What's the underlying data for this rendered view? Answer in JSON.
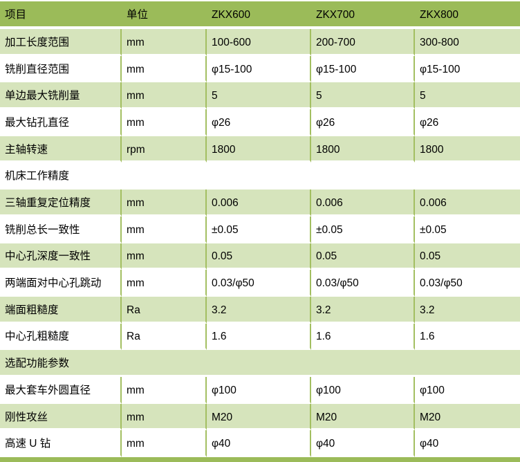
{
  "colors": {
    "header_green": "#9bbb59",
    "row_light_green": "#d6e4bc",
    "row_white": "#ffffff",
    "grid_line_green": "#a3bf61",
    "text": "#000000"
  },
  "table": {
    "columns": [
      "项目",
      "单位",
      "ZKX600",
      "ZKX700",
      "ZKX800"
    ],
    "rows": [
      {
        "type": "data",
        "shade": "green",
        "cells": [
          "加工长度范围",
          "mm",
          "100-600",
          "200-700",
          "300-800"
        ]
      },
      {
        "type": "data",
        "shade": "white",
        "cells": [
          "铣削直径范围",
          "mm",
          "φ15-100",
          "φ15-100",
          "φ15-100"
        ]
      },
      {
        "type": "data",
        "shade": "green",
        "cells": [
          "单边最大铣削量",
          "mm",
          "5",
          "5",
          "5"
        ]
      },
      {
        "type": "data",
        "shade": "white",
        "cells": [
          "最大钻孔直径",
          "mm",
          "φ26",
          "φ26",
          "φ26"
        ]
      },
      {
        "type": "data",
        "shade": "green",
        "cells": [
          "主轴转速",
          "rpm",
          "1800",
          "1800",
          "1800"
        ]
      },
      {
        "type": "section",
        "shade": "white",
        "label": "机床工作精度"
      },
      {
        "type": "data",
        "shade": "green",
        "cells": [
          "三轴重复定位精度",
          "mm",
          "0.006",
          "0.006",
          "0.006"
        ]
      },
      {
        "type": "data",
        "shade": "white",
        "cells": [
          "铣削总长一致性",
          "mm",
          "±0.05",
          "±0.05",
          "±0.05"
        ]
      },
      {
        "type": "data",
        "shade": "green",
        "cells": [
          "中心孔深度一致性",
          "mm",
          "0.05",
          "0.05",
          "0.05"
        ]
      },
      {
        "type": "data",
        "shade": "white",
        "cells": [
          "两端面对中心孔跳动",
          "mm",
          "0.03/φ50",
          "0.03/φ50",
          "0.03/φ50"
        ]
      },
      {
        "type": "data",
        "shade": "green",
        "cells": [
          "端面粗糙度",
          "Ra",
          "3.2",
          "3.2",
          "3.2"
        ]
      },
      {
        "type": "data",
        "shade": "white",
        "cells": [
          "中心孔粗糙度",
          "Ra",
          "1.6",
          "1.6",
          "1.6"
        ]
      },
      {
        "type": "section",
        "shade": "green",
        "label": "选配功能参数"
      },
      {
        "type": "data",
        "shade": "white",
        "cells": [
          "最大套车外圆直径",
          "mm",
          "φ100",
          "φ100",
          "φ100"
        ]
      },
      {
        "type": "data",
        "shade": "green",
        "cells": [
          "刚性攻丝",
          "mm",
          "M20",
          "M20",
          "M20"
        ]
      },
      {
        "type": "data",
        "shade": "white",
        "cells": [
          "高速 U 钻",
          "mm",
          "φ40",
          "φ40",
          "φ40"
        ]
      }
    ]
  }
}
